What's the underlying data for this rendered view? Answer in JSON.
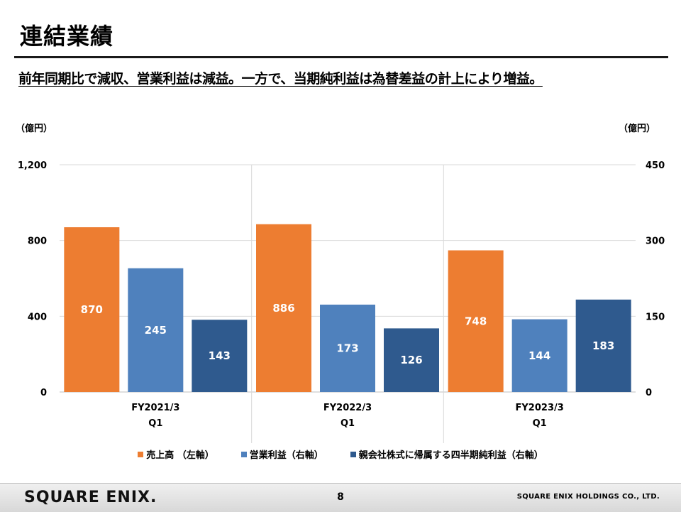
{
  "header": {
    "title": "連結業績",
    "headline": "前年同期比で減収、営業利益は減益。一方で、当期純利益は為替差益の計上により増益。"
  },
  "chart_data": {
    "type": "bar",
    "categories": [
      {
        "line1": "FY2021/3",
        "line2": "Q1"
      },
      {
        "line1": "FY2022/3",
        "line2": "Q1"
      },
      {
        "line1": "FY2023/3",
        "line2": "Q1"
      }
    ],
    "series": [
      {
        "name": "売上高 （左軸）",
        "axis": "left",
        "color": "#ED7D31",
        "values": [
          870,
          886,
          748
        ]
      },
      {
        "name": "営業利益（右軸）",
        "axis": "right",
        "color": "#4F81BD",
        "values": [
          245,
          173,
          144
        ]
      },
      {
        "name": "親会社株式に帰属する四半期純利益（右軸）",
        "axis": "right",
        "color": "#2F5A8E",
        "values": [
          143,
          126,
          183
        ]
      }
    ],
    "y_left": {
      "unit": "（億円）",
      "ylim": [
        0,
        1200
      ],
      "ticks": [
        0,
        400,
        800,
        1200
      ],
      "tick_labels": [
        "0",
        "400",
        "800",
        "1,200"
      ]
    },
    "y_right": {
      "unit": "（億円）",
      "ylim": [
        0,
        450
      ],
      "ticks": [
        0,
        150,
        300,
        450
      ],
      "tick_labels": [
        "0",
        "150",
        "300",
        "450"
      ]
    },
    "grid": true,
    "legend_position": "bottom"
  },
  "footer": {
    "logo": "SQUARE ENIX.",
    "page_number": "8",
    "company": "SQUARE ENIX HOLDINGS CO., LTD."
  }
}
